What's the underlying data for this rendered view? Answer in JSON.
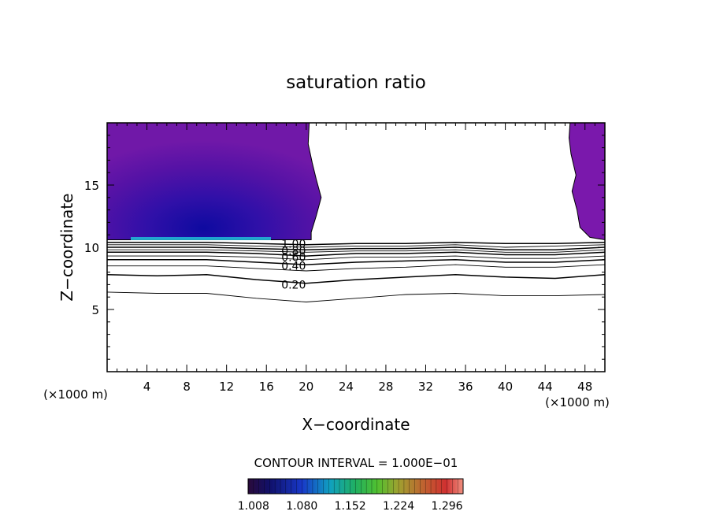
{
  "chart_data": {
    "type": "contour",
    "title": "saturation ratio",
    "xlabel": "X−coordinate",
    "ylabel": "Z−coordinate",
    "x_unit_left": "(×1000 m)",
    "x_unit_right": "(×1000 m)",
    "xlim": [
      0,
      50
    ],
    "ylim": [
      0,
      20
    ],
    "x_ticks": [
      4,
      8,
      12,
      16,
      20,
      24,
      28,
      32,
      36,
      40,
      44,
      48
    ],
    "x_tick_labels": [
      "4",
      "8",
      "12",
      "16",
      "20",
      "24",
      "28",
      "32",
      "36",
      "40",
      "44",
      "48"
    ],
    "y_ticks": [
      5,
      10,
      15
    ],
    "y_tick_labels": [
      "5",
      "10",
      "15"
    ],
    "contour_interval_label": "CONTOUR INTERVAL = 1.000E−01",
    "contour_labels": [
      {
        "text": "1.00",
        "x": 17.5,
        "y": 10.3
      },
      {
        "text": "0.80",
        "x": 17.5,
        "y": 9.7
      },
      {
        "text": "0.60",
        "x": 17.5,
        "y": 9.2
      },
      {
        "text": "0.40",
        "x": 17.5,
        "y": 8.5
      },
      {
        "text": "0.20",
        "x": 17.5,
        "y": 7.0
      }
    ],
    "contour_lines": [
      {
        "level": 0.1,
        "points": [
          [
            0,
            6.4
          ],
          [
            5,
            6.3
          ],
          [
            10,
            6.3
          ],
          [
            15,
            5.9
          ],
          [
            20,
            5.6
          ],
          [
            25,
            5.9
          ],
          [
            30,
            6.2
          ],
          [
            35,
            6.3
          ],
          [
            40,
            6.1
          ],
          [
            45,
            6.1
          ],
          [
            50,
            6.2
          ]
        ]
      },
      {
        "level": 0.2,
        "points": [
          [
            0,
            7.8
          ],
          [
            5,
            7.7
          ],
          [
            10,
            7.8
          ],
          [
            15,
            7.4
          ],
          [
            20,
            7.1
          ],
          [
            25,
            7.4
          ],
          [
            30,
            7.6
          ],
          [
            35,
            7.8
          ],
          [
            40,
            7.6
          ],
          [
            45,
            7.5
          ],
          [
            50,
            7.8
          ]
        ]
      },
      {
        "level": 0.3,
        "points": [
          [
            0,
            8.5
          ],
          [
            5,
            8.5
          ],
          [
            10,
            8.5
          ],
          [
            15,
            8.3
          ],
          [
            20,
            8.1
          ],
          [
            25,
            8.3
          ],
          [
            30,
            8.4
          ],
          [
            35,
            8.6
          ],
          [
            40,
            8.4
          ],
          [
            45,
            8.4
          ],
          [
            50,
            8.6
          ]
        ]
      },
      {
        "level": 0.4,
        "points": [
          [
            0,
            9.0
          ],
          [
            5,
            9.0
          ],
          [
            10,
            9.0
          ],
          [
            15,
            8.8
          ],
          [
            20,
            8.6
          ],
          [
            25,
            8.8
          ],
          [
            30,
            8.9
          ],
          [
            35,
            9.0
          ],
          [
            40,
            8.8
          ],
          [
            45,
            8.8
          ],
          [
            50,
            9.0
          ]
        ]
      },
      {
        "level": 0.5,
        "points": [
          [
            0,
            9.3
          ],
          [
            5,
            9.3
          ],
          [
            10,
            9.3
          ],
          [
            15,
            9.2
          ],
          [
            20,
            9.0
          ],
          [
            25,
            9.2
          ],
          [
            30,
            9.2
          ],
          [
            35,
            9.3
          ],
          [
            40,
            9.1
          ],
          [
            45,
            9.1
          ],
          [
            50,
            9.3
          ]
        ]
      },
      {
        "level": 0.6,
        "points": [
          [
            0,
            9.6
          ],
          [
            5,
            9.6
          ],
          [
            10,
            9.6
          ],
          [
            15,
            9.5
          ],
          [
            20,
            9.3
          ],
          [
            25,
            9.5
          ],
          [
            30,
            9.5
          ],
          [
            35,
            9.6
          ],
          [
            40,
            9.4
          ],
          [
            45,
            9.4
          ],
          [
            50,
            9.6
          ]
        ]
      },
      {
        "level": 0.7,
        "points": [
          [
            0,
            9.8
          ],
          [
            5,
            9.8
          ],
          [
            10,
            9.8
          ],
          [
            15,
            9.7
          ],
          [
            20,
            9.6
          ],
          [
            25,
            9.7
          ],
          [
            30,
            9.7
          ],
          [
            35,
            9.8
          ],
          [
            40,
            9.6
          ],
          [
            45,
            9.6
          ],
          [
            50,
            9.8
          ]
        ]
      },
      {
        "level": 0.8,
        "points": [
          [
            0,
            10.0
          ],
          [
            5,
            10.0
          ],
          [
            10,
            10.0
          ],
          [
            15,
            9.9
          ],
          [
            20,
            9.8
          ],
          [
            25,
            9.9
          ],
          [
            30,
            9.9
          ],
          [
            35,
            10.0
          ],
          [
            40,
            9.8
          ],
          [
            45,
            9.8
          ],
          [
            50,
            10.0
          ]
        ]
      },
      {
        "level": 0.9,
        "points": [
          [
            0,
            10.2
          ],
          [
            5,
            10.2
          ],
          [
            10,
            10.2
          ],
          [
            15,
            10.1
          ],
          [
            20,
            10.0
          ],
          [
            25,
            10.1
          ],
          [
            30,
            10.1
          ],
          [
            35,
            10.2
          ],
          [
            40,
            10.0
          ],
          [
            45,
            10.1
          ],
          [
            50,
            10.2
          ]
        ]
      },
      {
        "level": 1.0,
        "points": [
          [
            0,
            10.4
          ],
          [
            5,
            10.4
          ],
          [
            10,
            10.4
          ],
          [
            15,
            10.3
          ],
          [
            20,
            10.2
          ],
          [
            25,
            10.3
          ],
          [
            30,
            10.3
          ],
          [
            35,
            10.4
          ],
          [
            40,
            10.3
          ],
          [
            45,
            10.3
          ],
          [
            50,
            10.4
          ]
        ]
      }
    ],
    "supersaturated_regions": [
      {
        "name": "left",
        "outline": [
          [
            0,
            10.6
          ],
          [
            20.5,
            10.6
          ],
          [
            20.5,
            11.2
          ],
          [
            21.0,
            12.5
          ],
          [
            21.5,
            14.0
          ],
          [
            21.0,
            15.5
          ],
          [
            20.6,
            16.8
          ],
          [
            20.2,
            18.3
          ],
          [
            20.3,
            20
          ],
          [
            0,
            20
          ]
        ]
      },
      {
        "name": "right",
        "outline": [
          [
            46.5,
            20
          ],
          [
            50,
            20
          ],
          [
            50,
            10.6
          ],
          [
            48.5,
            10.8
          ],
          [
            47.5,
            11.6
          ],
          [
            47.2,
            13.0
          ],
          [
            46.7,
            14.5
          ],
          [
            47.1,
            15.8
          ],
          [
            46.6,
            17.5
          ],
          [
            46.4,
            18.8
          ]
        ]
      }
    ],
    "colorbar": {
      "tick_labels": [
        "1.008",
        "1.080",
        "1.152",
        "1.224",
        "1.296"
      ],
      "vmin": 1.0,
      "vmax": 1.32,
      "colors": [
        "#2a0a3a",
        "#10106a",
        "#1838c8",
        "#10a0c0",
        "#20b060",
        "#50c030",
        "#a0a030",
        "#c06030",
        "#d03030",
        "#f09080"
      ]
    }
  }
}
